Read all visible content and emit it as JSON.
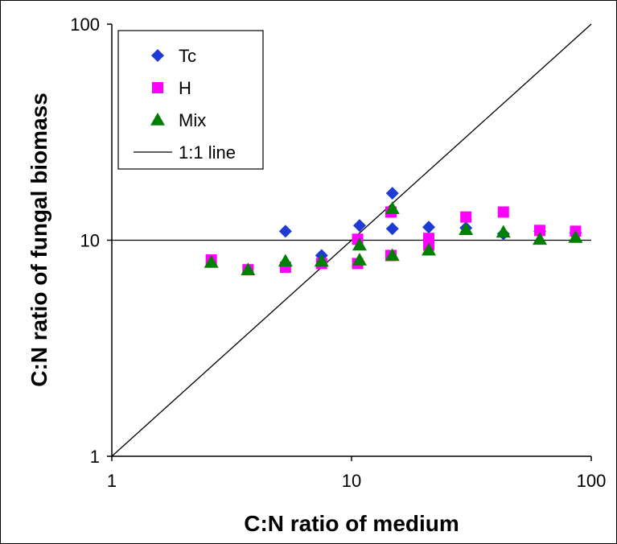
{
  "chart_data": {
    "type": "scatter",
    "xlabel": "C:N ratio of medium",
    "ylabel": "C:N ratio of fungal biomass",
    "xscale": "log",
    "yscale": "log",
    "xlim": [
      1,
      100
    ],
    "ylim": [
      1,
      100
    ],
    "x_ticks": [
      "1",
      "10",
      "100"
    ],
    "y_ticks": [
      "1",
      "10",
      "100"
    ],
    "grid": "none",
    "reference_lines": [
      {
        "name": "1:1 line",
        "type": "diagonal",
        "color": "#000000"
      },
      {
        "type": "horizontal",
        "y": 10,
        "color": "#000000"
      }
    ],
    "legend": {
      "position": "top-left"
    },
    "series": [
      {
        "name": "Tc",
        "marker": "diamond",
        "color": "#1f3bd6",
        "points": [
          [
            5.3,
            11.0
          ],
          [
            7.5,
            8.5
          ],
          [
            10.8,
            11.7
          ],
          [
            14.8,
            11.3
          ],
          [
            14.8,
            16.5
          ],
          [
            21.0,
            11.5
          ],
          [
            30.0,
            11.4
          ],
          [
            43.0,
            10.7
          ],
          [
            61.0,
            11.0
          ],
          [
            86.0,
            10.8
          ]
        ]
      },
      {
        "name": "H",
        "marker": "square",
        "color": "#ff00ff",
        "points": [
          [
            2.6,
            8.1
          ],
          [
            3.7,
            7.3
          ],
          [
            5.3,
            7.5
          ],
          [
            7.5,
            7.8
          ],
          [
            10.6,
            7.8
          ],
          [
            10.6,
            10.1
          ],
          [
            14.6,
            8.5
          ],
          [
            14.6,
            13.5
          ],
          [
            21.0,
            9.5
          ],
          [
            21.0,
            10.2
          ],
          [
            30.0,
            12.8
          ],
          [
            43.0,
            13.5
          ],
          [
            61.0,
            11.1
          ],
          [
            86.0,
            11.0
          ]
        ]
      },
      {
        "name": "Mix",
        "marker": "triangle",
        "color": "#008000",
        "points": [
          [
            2.6,
            7.9
          ],
          [
            3.7,
            7.3
          ],
          [
            5.3,
            8.0
          ],
          [
            7.5,
            8.0
          ],
          [
            10.8,
            8.1
          ],
          [
            10.8,
            9.5
          ],
          [
            14.8,
            8.5
          ],
          [
            14.8,
            14.0
          ],
          [
            21.0,
            9.0
          ],
          [
            30.0,
            11.2
          ],
          [
            43.0,
            10.9
          ],
          [
            61.0,
            10.1
          ],
          [
            86.0,
            10.3
          ]
        ]
      }
    ],
    "legend_entries": [
      "Tc",
      "H",
      "Mix",
      "1:1 line"
    ]
  }
}
